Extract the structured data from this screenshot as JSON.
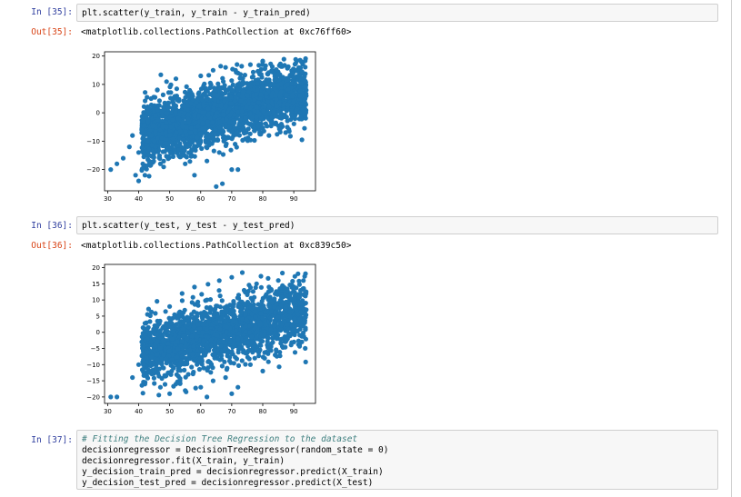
{
  "cells": [
    {
      "in_prompt": "In [35]:",
      "code": "plt.scatter(y_train, y_train - y_train_pred)",
      "out_prompt": "Out[35]:",
      "out_text": "<matplotlib.collections.PathCollection at 0xc76ff60>"
    },
    {
      "in_prompt": "In [36]:",
      "code": "plt.scatter(y_test, y_test - y_test_pred)",
      "out_prompt": "Out[36]:",
      "out_text": "<matplotlib.collections.PathCollection at 0xc839c50>"
    },
    {
      "in_prompt": "In [37]:",
      "code_lines": [
        "# Fitting the Decision Tree Regression to the dataset",
        "decisionregressor = DecisionTreeRegressor(random_state = 0)",
        "decisionregressor.fit(X_train, y_train)",
        "y_decision_train_pred = decisionregressor.predict(X_train)",
        "y_decision_test_pred = decisionregressor.predict(X_test)"
      ]
    }
  ],
  "colors": {
    "marker": "#1f77b4",
    "in_prompt": "#303f9f",
    "out_prompt": "#d84315"
  },
  "chart_data": [
    {
      "type": "scatter",
      "title": "",
      "xlabel": "",
      "ylabel": "",
      "xlim": [
        29,
        97
      ],
      "ylim": [
        -27.5,
        21.5
      ],
      "xticks": [
        30,
        40,
        50,
        60,
        70,
        80,
        90
      ],
      "yticks": [
        -20,
        -10,
        0,
        10,
        20
      ],
      "grid": false,
      "series": [
        {
          "color": "#1f77b4",
          "description_points": {
            "x": [
              31,
              33,
              35,
              37,
              38,
              40,
              41,
              42,
              43,
              44,
              45,
              46,
              47,
              48,
              49,
              50,
              52,
              54,
              56,
              58,
              60,
              62,
              64,
              66,
              68,
              70,
              72,
              74,
              76,
              78,
              80,
              82,
              84,
              86,
              88,
              90,
              92,
              94,
              65,
              67,
              72,
              58,
              55,
              40,
              39
            ],
            "y": [
              -20,
              -18,
              -16,
              -12,
              -8,
              -14,
              -6,
              -22,
              -3,
              5,
              -10,
              8,
              -18,
              2,
              11,
              -8,
              12,
              -15,
              6,
              -12,
              13,
              -17,
              15,
              -14,
              16,
              -20,
              14,
              -6,
              17,
              2,
              18,
              -8,
              12,
              -4,
              10,
              4,
              6,
              8,
              -26,
              -25,
              -20,
              -22,
              -18,
              -24,
              -22
            ]
          }
        }
      ]
    },
    {
      "type": "scatter",
      "title": "",
      "xlabel": "",
      "ylabel": "",
      "xlim": [
        29,
        97
      ],
      "ylim": [
        -22,
        21
      ],
      "xticks": [
        30,
        40,
        50,
        60,
        70,
        80,
        90
      ],
      "yticks": [
        -20,
        -15,
        -10,
        -5,
        0,
        5,
        10,
        15,
        20
      ],
      "grid": false,
      "series": [
        {
          "color": "#1f77b4",
          "description_points": {
            "x": [
              31,
              33,
              38,
              40,
              42,
              44,
              45,
              46,
              47,
              48,
              50,
              52,
              54,
              56,
              58,
              60,
              62,
              64,
              66,
              68,
              70,
              72,
              74,
              76,
              78,
              80,
              82,
              84,
              86,
              88,
              90,
              92,
              94,
              62,
              70,
              50,
              55
            ],
            "y": [
              -20,
              -20,
              -14,
              -10,
              -16,
              -3,
              -12,
              2,
              -17,
              -7,
              8,
              -16,
              12,
              -13,
              14,
              -17,
              10,
              -15,
              16,
              -14,
              17,
              -17,
              13,
              -10,
              15,
              -12,
              14,
              -7,
              11,
              -2,
              9,
              4,
              7,
              -20,
              -19,
              -19,
              -18
            ]
          }
        }
      ]
    }
  ]
}
